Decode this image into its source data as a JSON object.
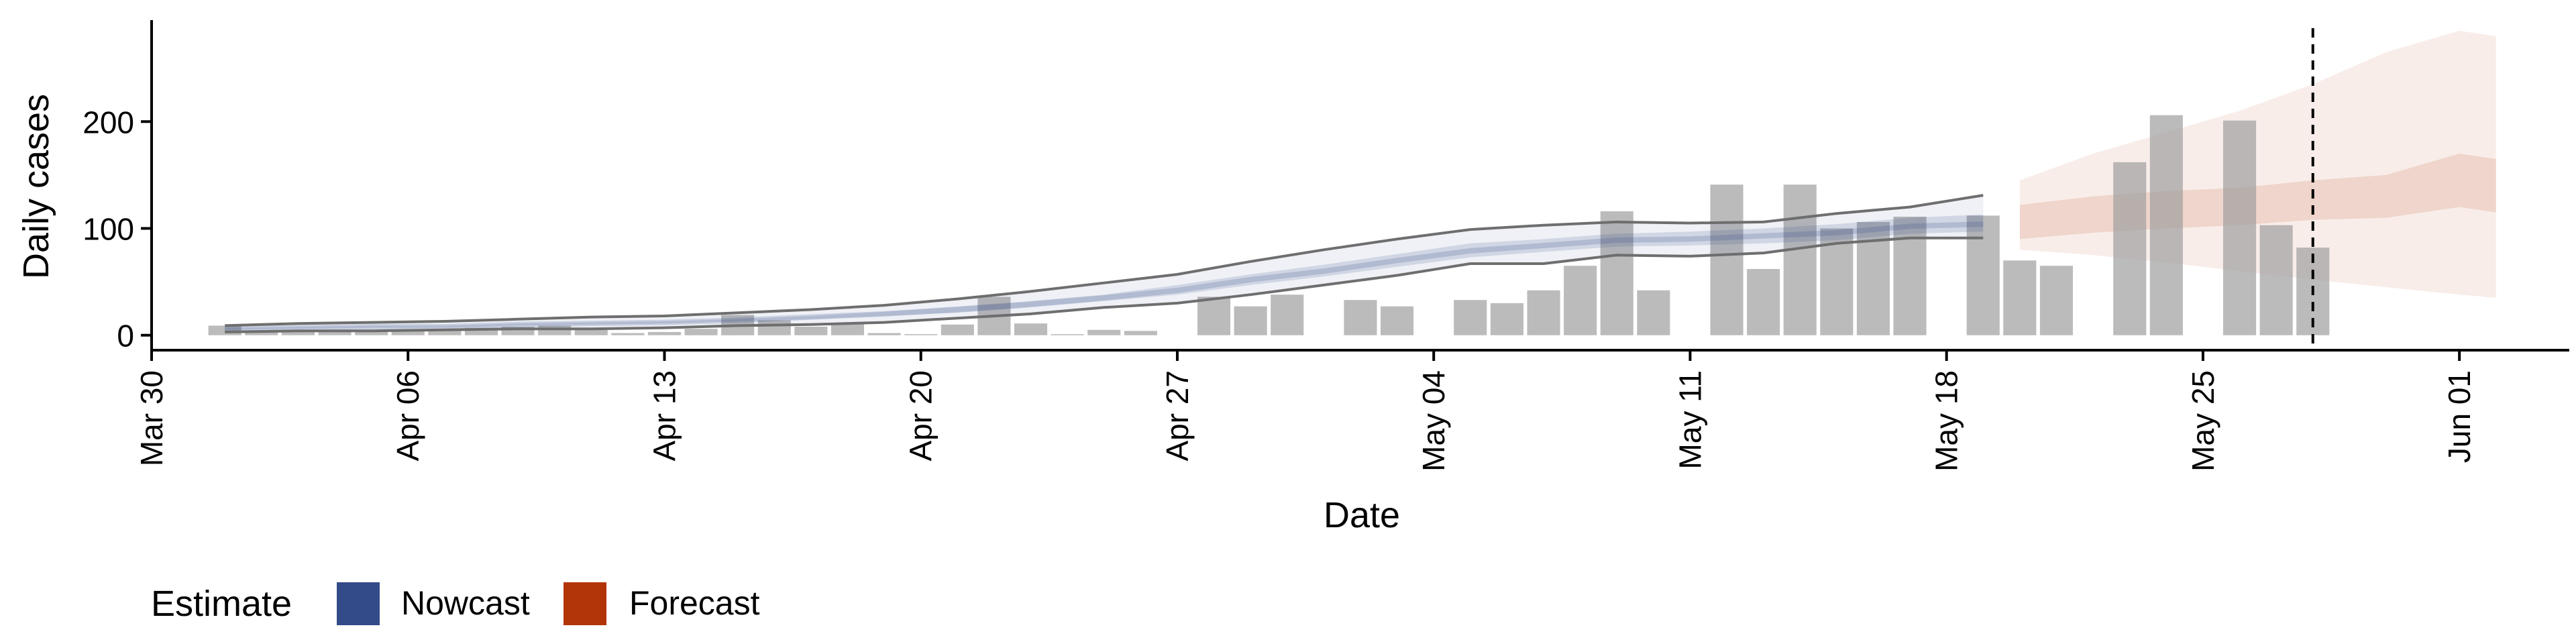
{
  "chart_data": {
    "type": "bar",
    "xlabel": "Date",
    "ylabel": "Daily cases",
    "x_ticks": [
      "Mar 30",
      "Apr 06",
      "Apr 13",
      "Apr 20",
      "Apr 27",
      "May 04",
      "May 11",
      "May 18",
      "May 25",
      "Jun 01"
    ],
    "y_ticks": [
      "0",
      "100",
      "200"
    ],
    "ylim": [
      -14,
      295
    ],
    "xlim": [
      "2020-03-30",
      "2020-06-04"
    ],
    "grid": false,
    "legend": {
      "title": "Estimate",
      "position": "bottom-left",
      "items": [
        {
          "label": "Nowcast",
          "color": "#344B89"
        },
        {
          "label": "Forecast",
          "color": "#B2350A"
        }
      ]
    },
    "bars": {
      "color": "#9E9E9E",
      "dates": [
        "2020-04-01",
        "2020-04-02",
        "2020-04-03",
        "2020-04-04",
        "2020-04-05",
        "2020-04-06",
        "2020-04-07",
        "2020-04-08",
        "2020-04-09",
        "2020-04-10",
        "2020-04-11",
        "2020-04-12",
        "2020-04-13",
        "2020-04-14",
        "2020-04-15",
        "2020-04-16",
        "2020-04-17",
        "2020-04-18",
        "2020-04-19",
        "2020-04-20",
        "2020-04-21",
        "2020-04-22",
        "2020-04-23",
        "2020-04-24",
        "2020-04-25",
        "2020-04-26",
        "2020-04-27",
        "2020-04-28",
        "2020-04-29",
        "2020-04-30",
        "2020-05-01",
        "2020-05-02",
        "2020-05-03",
        "2020-05-04",
        "2020-05-05",
        "2020-05-06",
        "2020-05-07",
        "2020-05-08",
        "2020-05-09",
        "2020-05-10",
        "2020-05-11",
        "2020-05-12",
        "2020-05-13",
        "2020-05-14",
        "2020-05-15",
        "2020-05-16",
        "2020-05-17",
        "2020-05-18",
        "2020-05-19",
        "2020-05-20",
        "2020-05-21",
        "2020-05-22",
        "2020-05-23",
        "2020-05-24",
        "2020-05-25",
        "2020-05-26",
        "2020-05-27",
        "2020-05-28"
      ],
      "values": [
        9,
        4,
        4,
        3,
        4,
        4,
        4,
        7,
        8,
        9,
        5,
        2,
        3,
        6,
        19,
        14,
        8,
        11,
        2,
        1,
        10,
        36,
        11,
        1,
        5,
        4,
        0,
        36,
        27,
        38,
        0,
        33,
        27,
        0,
        33,
        30,
        42,
        65,
        116,
        42,
        0,
        141,
        62,
        141,
        100,
        106,
        111,
        0,
        112,
        70,
        65,
        0,
        162,
        206,
        0,
        201,
        103,
        82
      ]
    },
    "nowcast": {
      "color": "#344B89",
      "dates": [
        "2020-04-01",
        "2020-04-03",
        "2020-04-05",
        "2020-04-07",
        "2020-04-09",
        "2020-04-11",
        "2020-04-13",
        "2020-04-15",
        "2020-04-17",
        "2020-04-19",
        "2020-04-21",
        "2020-04-23",
        "2020-04-25",
        "2020-04-27",
        "2020-04-29",
        "2020-05-01",
        "2020-05-03",
        "2020-05-05",
        "2020-05-07",
        "2020-05-09",
        "2020-05-11",
        "2020-05-13",
        "2020-05-15",
        "2020-05-17",
        "2020-05-19"
      ],
      "median": [
        6,
        7,
        8,
        8,
        10,
        11,
        12,
        14,
        17,
        20,
        24,
        29,
        35,
        42,
        52,
        60,
        70,
        79,
        84,
        89,
        90,
        93,
        96,
        102,
        104
      ],
      "inner_lower": [
        5,
        6,
        7,
        7,
        9,
        10,
        11,
        13,
        15,
        18,
        21,
        26,
        32,
        38,
        47,
        55,
        64,
        73,
        78,
        83,
        84,
        86,
        89,
        95,
        97
      ],
      "inner_upper": [
        7,
        8,
        9,
        9,
        11,
        12,
        13,
        15,
        18,
        22,
        27,
        32,
        38,
        47,
        57,
        66,
        76,
        86,
        90,
        95,
        97,
        100,
        104,
        110,
        113
      ],
      "lower": [
        3,
        4,
        4,
        5,
        6,
        6,
        7,
        9,
        10,
        12,
        16,
        20,
        26,
        30,
        38,
        47,
        56,
        67,
        67,
        75,
        74,
        77,
        86,
        91,
        91
      ],
      "upper": [
        9,
        11,
        12,
        13,
        15,
        17,
        18,
        21,
        24,
        28,
        34,
        41,
        49,
        57,
        69,
        80,
        90,
        99,
        103,
        106,
        105,
        106,
        114,
        120,
        131
      ]
    },
    "forecast": {
      "color": "#B2350A",
      "dates": [
        "2020-05-20",
        "2020-05-22",
        "2020-05-24",
        "2020-05-26",
        "2020-05-28",
        "2020-05-30",
        "2020-06-01",
        "2020-06-02"
      ],
      "median": [
        108,
        115,
        120,
        125,
        130,
        137,
        145,
        140
      ],
      "inner_lower": [
        90,
        96,
        100,
        103,
        108,
        110,
        120,
        115
      ],
      "inner_upper": [
        122,
        130,
        135,
        138,
        145,
        150,
        170,
        165
      ],
      "lower": [
        80,
        75,
        68,
        60,
        52,
        45,
        38,
        35
      ],
      "upper": [
        145,
        170,
        190,
        210,
        235,
        265,
        285,
        280
      ]
    },
    "vline_date": "2020-05-28"
  }
}
